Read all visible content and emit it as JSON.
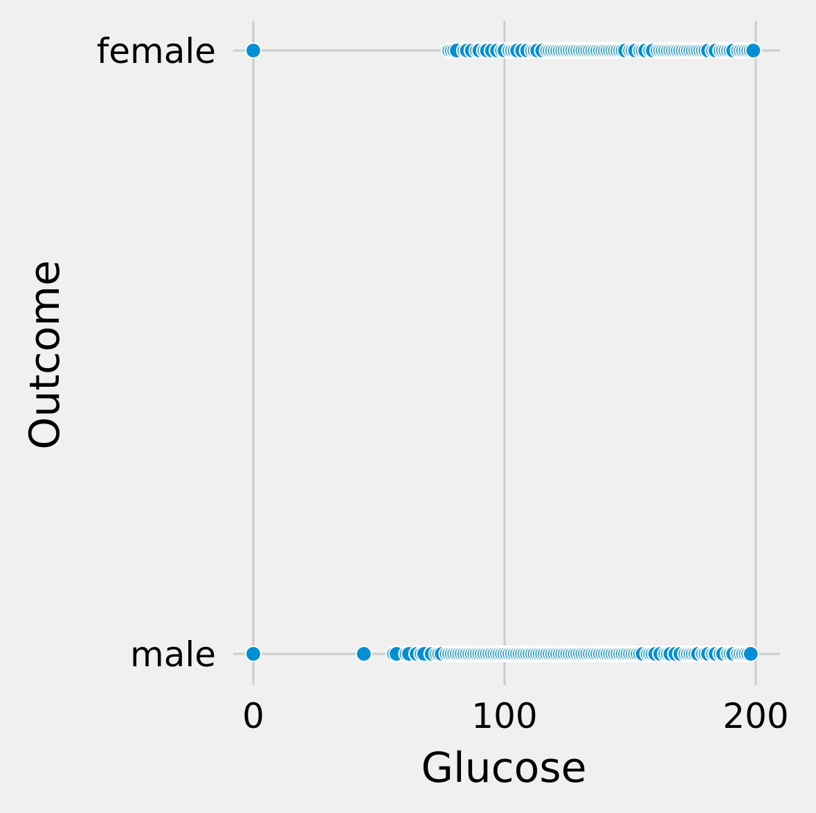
{
  "chart_data": {
    "type": "scatter",
    "title": "",
    "xlabel": "Glucose",
    "ylabel": "Outcome",
    "xlim": [
      -8,
      209
    ],
    "xticks": [
      0,
      100,
      200
    ],
    "xtick_labels": [
      "0",
      "100",
      "200"
    ],
    "categories": [
      "female",
      "male"
    ],
    "grid": true,
    "colors": {
      "marker": "#008fd5",
      "edge": "#ffffff",
      "grid": "#cbcbcb",
      "background": "#f0f0f0"
    },
    "series": [
      {
        "category": "female",
        "x": [
          0,
          78,
          79,
          80,
          81,
          84,
          85,
          87,
          89,
          90,
          92,
          93,
          95,
          97,
          99,
          100,
          102,
          103,
          104,
          105,
          107,
          109,
          111,
          112,
          113,
          115,
          117,
          118,
          119,
          120,
          121,
          122,
          123,
          124,
          125,
          126,
          127,
          128,
          129,
          130,
          131,
          132,
          133,
          134,
          135,
          136,
          137,
          138,
          139,
          140,
          141,
          142,
          143,
          144,
          145,
          146,
          147,
          148,
          150,
          151,
          152,
          154,
          155,
          156,
          158,
          159,
          161,
          162,
          163,
          164,
          165,
          166,
          167,
          168,
          169,
          170,
          171,
          172,
          173,
          174,
          175,
          176,
          177,
          178,
          179,
          180,
          181,
          183,
          184,
          186,
          187,
          188,
          189,
          190,
          191,
          193,
          194,
          195,
          196,
          197,
          198,
          199
        ]
      },
      {
        "category": "male",
        "x": [
          0,
          44,
          56,
          57,
          61,
          62,
          65,
          67,
          68,
          71,
          73,
          74,
          75,
          77,
          78,
          79,
          80,
          81,
          82,
          83,
          84,
          85,
          86,
          87,
          88,
          89,
          90,
          91,
          92,
          93,
          94,
          95,
          96,
          97,
          98,
          99,
          100,
          101,
          102,
          103,
          104,
          105,
          106,
          107,
          108,
          109,
          110,
          111,
          112,
          113,
          114,
          115,
          116,
          117,
          118,
          119,
          120,
          121,
          122,
          123,
          124,
          125,
          126,
          127,
          128,
          129,
          130,
          131,
          132,
          133,
          134,
          135,
          136,
          137,
          138,
          139,
          140,
          141,
          142,
          143,
          144,
          145,
          146,
          147,
          148,
          149,
          150,
          151,
          152,
          153,
          154,
          155,
          157,
          158,
          159,
          160,
          162,
          164,
          165,
          166,
          168,
          170,
          172,
          173,
          174,
          175,
          176,
          177,
          179,
          180,
          181,
          183,
          184,
          186,
          187,
          189,
          190,
          191,
          193,
          194,
          195,
          196,
          197,
          198
        ]
      }
    ]
  }
}
